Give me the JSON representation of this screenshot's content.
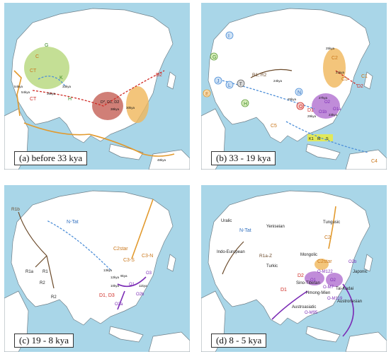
{
  "colors": {
    "ocean": "#a9d6e8",
    "land": "#ffffff",
    "coast": "#6f7f88",
    "route_red": "#cf2a24",
    "route_orange": "#e29a2e",
    "route_blue": "#4e8fd8",
    "route_purple": "#7b2bb5",
    "route_brown": "#6b4a2a",
    "green_area": "#b5d77a",
    "red_area": "#c8695f",
    "orange_area": "#f0b75a",
    "purple_area": "#b06fd0",
    "yellow_area": "#e7ea4a"
  },
  "panels": [
    {
      "id": "a",
      "caption": "(a) before 33 kya",
      "labels": {
        "g": "G",
        "c": "C",
        "ct": "CT",
        "ct2": "CT",
        "c1": "C1",
        "d2": "D2",
        "d_group": "D*, D1, D2",
        "k": "K",
        "h": "H",
        "age54a": "54kya",
        "age54b": "54kya",
        "age33": "33kya",
        "age36": "36kya",
        "age38": "38kya",
        "age30": "30kya",
        "age48": "48kya"
      }
    },
    {
      "id": "b",
      "caption": "(b) 33 - 19 kya",
      "labels": {
        "c2": "C2",
        "c3": "C3",
        "c4": "C4",
        "c5": "C5",
        "c1": "C1",
        "j": "J",
        "e": "E",
        "g": "G",
        "i": "I",
        "l": "L",
        "h": "H",
        "t": "T",
        "r1r2": "R1, R2",
        "n": "N",
        "o": "O",
        "d1": "D1",
        "d2": "D2",
        "o2": "O2",
        "o1b": "O1b",
        "o1a": "O1a",
        "k1": "K1",
        "m": "M",
        "s": "S",
        "age24": "24kya",
        "age21": "21kya",
        "age25a": "25kya",
        "age25b": "25kya",
        "age23": "23kya",
        "age27": "27kya",
        "age29": "29kya"
      }
    },
    {
      "id": "c",
      "caption": "(c) 19 - 8 kya",
      "labels": {
        "r1b": "R1b",
        "r1a": "R1a",
        "r1": "R1",
        "r2": "R2",
        "r2b": "R2",
        "ntat": "N-Tat",
        "c2star": "C2star",
        "c3s": "C3-S",
        "c3n": "C3-N",
        "o3": "O3",
        "d1d3": "D1, D3",
        "o2b": "O2b",
        "o2a": "O2a",
        "o1": "O1",
        "age13": "13kya",
        "age10": "10kya",
        "age9": "9kya",
        "age11": "11kya",
        "age12": "12kya"
      }
    },
    {
      "id": "d",
      "caption": "(d) 8 - 5 kya",
      "labels": {
        "uralic": "Uralic",
        "yeniseian": "Yeniseian",
        "ntat": "N-Tat",
        "indo": "Indo-European",
        "r1a": "R1a-Z",
        "turkic": "Turkic",
        "mongolic": "Mongolic",
        "tungusic": "Tungusic",
        "japan": "Japonic",
        "c2": "C2",
        "c2star": "C2star",
        "o2b": "O2b",
        "d2": "D2",
        "d1": "D1",
        "sino": "Sino-Tibetan",
        "hmong": "Hmong-Mien",
        "tai": "Tai-Kadai",
        "austro": "Austroasiatic",
        "austron": "Austronesian",
        "om122": "O-M122",
        "om7": "O-M7",
        "om95": "O-M95",
        "om119": "O-M119",
        "o1": "O1",
        "o2": "O2"
      }
    }
  ]
}
